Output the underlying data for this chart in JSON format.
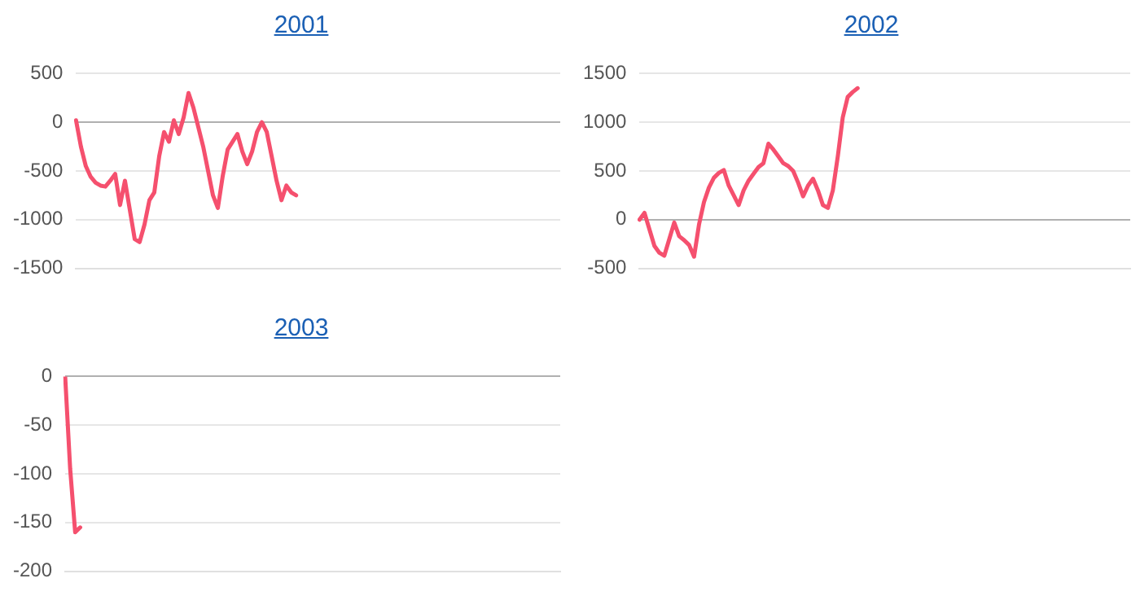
{
  "chart_data": [
    {
      "type": "line",
      "title": "2001",
      "categories": [
        null,
        null,
        null,
        null,
        null,
        null,
        null,
        null,
        null,
        null,
        null,
        null,
        null,
        null,
        null,
        null,
        null,
        null,
        null,
        null,
        null,
        null,
        null,
        null,
        null,
        null,
        null,
        null,
        null,
        null,
        null,
        null,
        null,
        null,
        null,
        null,
        null,
        null,
        null,
        null,
        null,
        null,
        null,
        null,
        null,
        null,
        null,
        null,
        null,
        null,
        null,
        null,
        null,
        null,
        null,
        null,
        null,
        null,
        null,
        null,
        null,
        null,
        null,
        null,
        null,
        null,
        null,
        null,
        null,
        null,
        null,
        null,
        null,
        null,
        null,
        null,
        null,
        null,
        null,
        null,
        null,
        null,
        null,
        null,
        null,
        null,
        null,
        null,
        null,
        null,
        null,
        null,
        null,
        null,
        null,
        null,
        null,
        null,
        null,
        null
      ],
      "series": [
        {
          "color": "#f5506e",
          "values": [
            20,
            -250,
            -450,
            -560,
            -620,
            -650,
            -660,
            -600,
            -530,
            -850,
            -600,
            -900,
            -1200,
            -1230,
            -1050,
            -800,
            -720,
            -350,
            -100,
            -200,
            20,
            -120,
            50,
            300,
            150,
            -50,
            -250,
            -500,
            -750,
            -880,
            -550,
            -280,
            -200,
            -120,
            -300,
            -430,
            -300,
            -100,
            0,
            -100,
            -350,
            -600,
            -800,
            -650,
            -720,
            -750,
            null,
            null,
            null,
            null,
            null,
            null,
            null,
            null,
            null,
            null,
            null,
            null,
            null,
            null,
            null,
            null,
            null,
            null,
            null,
            null,
            null,
            null,
            null,
            null,
            null,
            null,
            null,
            null,
            null,
            null,
            null,
            null,
            null,
            null,
            null,
            null,
            null,
            null,
            null,
            null,
            null,
            null,
            null,
            null,
            null,
            null,
            null,
            null,
            null,
            null,
            null,
            null,
            null,
            null
          ]
        }
      ],
      "ylim": [
        -1500,
        500
      ],
      "yticks": [
        -1500,
        -1000,
        -500,
        0,
        500
      ],
      "grid": "y",
      "tick_labels": "y",
      "legend": false,
      "marker": "none",
      "line_style": "solid"
    },
    {
      "type": "line",
      "title": "2002",
      "categories": [
        null,
        null,
        null,
        null,
        null,
        null,
        null,
        null,
        null,
        null,
        null,
        null,
        null,
        null,
        null,
        null,
        null,
        null,
        null,
        null,
        null,
        null,
        null,
        null,
        null,
        null,
        null,
        null,
        null,
        null,
        null,
        null,
        null,
        null,
        null,
        null,
        null,
        null,
        null,
        null,
        null,
        null,
        null,
        null,
        null,
        null,
        null,
        null,
        null,
        null,
        null,
        null,
        null,
        null,
        null,
        null,
        null,
        null,
        null,
        null,
        null,
        null,
        null,
        null,
        null,
        null,
        null,
        null,
        null,
        null,
        null,
        null,
        null,
        null,
        null,
        null,
        null,
        null,
        null,
        null,
        null,
        null,
        null,
        null,
        null,
        null,
        null,
        null,
        null,
        null,
        null,
        null,
        null,
        null,
        null,
        null,
        null,
        null,
        null,
        null
      ],
      "series": [
        {
          "color": "#f5506e",
          "values": [
            0,
            70,
            -100,
            -270,
            -340,
            -370,
            -200,
            -30,
            -170,
            -210,
            -260,
            -380,
            -50,
            180,
            330,
            430,
            480,
            510,
            350,
            250,
            150,
            300,
            400,
            470,
            540,
            580,
            780,
            720,
            650,
            580,
            550,
            500,
            380,
            240,
            350,
            420,
            300,
            150,
            120,
            300,
            650,
            1050,
            1260,
            1310,
            1350,
            null,
            null,
            null,
            null,
            null,
            null,
            null,
            null,
            null,
            null,
            null,
            null,
            null,
            null,
            null,
            null,
            null,
            null,
            null,
            null,
            null,
            null,
            null,
            null,
            null,
            null,
            null,
            null,
            null,
            null,
            null,
            null,
            null,
            null,
            null,
            null,
            null,
            null,
            null,
            null,
            null,
            null,
            null,
            null,
            null,
            null,
            null,
            null,
            null,
            null,
            null,
            null,
            null,
            null,
            null
          ]
        }
      ],
      "ylim": [
        -500,
        1500
      ],
      "yticks": [
        -500,
        0,
        500,
        1000,
        1500
      ],
      "grid": "y",
      "tick_labels": "y",
      "legend": false,
      "marker": "none",
      "line_style": "solid"
    },
    {
      "type": "line",
      "title": "2003",
      "categories": [
        null,
        null,
        null,
        null,
        null,
        null,
        null,
        null,
        null,
        null,
        null,
        null,
        null,
        null,
        null,
        null,
        null,
        null,
        null,
        null,
        null,
        null,
        null,
        null,
        null,
        null,
        null,
        null,
        null,
        null,
        null,
        null,
        null,
        null,
        null,
        null,
        null,
        null,
        null,
        null,
        null,
        null,
        null,
        null,
        null,
        null,
        null,
        null,
        null,
        null,
        null,
        null,
        null,
        null,
        null,
        null,
        null,
        null,
        null,
        null,
        null,
        null,
        null,
        null,
        null,
        null,
        null,
        null,
        null,
        null,
        null,
        null,
        null,
        null,
        null,
        null,
        null,
        null,
        null,
        null,
        null,
        null,
        null,
        null,
        null,
        null,
        null,
        null,
        null,
        null,
        null,
        null,
        null,
        null,
        null,
        null,
        null,
        null,
        null,
        null
      ],
      "series": [
        {
          "color": "#f5506e",
          "values": [
            0,
            -95,
            -160,
            -155,
            null,
            null,
            null,
            null,
            null,
            null,
            null,
            null,
            null,
            null,
            null,
            null,
            null,
            null,
            null,
            null,
            null,
            null,
            null,
            null,
            null,
            null,
            null,
            null,
            null,
            null,
            null,
            null,
            null,
            null,
            null,
            null,
            null,
            null,
            null,
            null,
            null,
            null,
            null,
            null,
            null,
            null,
            null,
            null,
            null,
            null,
            null,
            null,
            null,
            null,
            null,
            null,
            null,
            null,
            null,
            null,
            null,
            null,
            null,
            null,
            null,
            null,
            null,
            null,
            null,
            null,
            null,
            null,
            null,
            null,
            null,
            null,
            null,
            null,
            null,
            null,
            null,
            null,
            null,
            null,
            null,
            null,
            null,
            null,
            null,
            null,
            null,
            null,
            null,
            null,
            null,
            null,
            null,
            null,
            null,
            null
          ]
        }
      ],
      "ylim": [
        -200,
        0
      ],
      "yticks": [
        -200,
        -150,
        -100,
        -50,
        0
      ],
      "grid": "y",
      "tick_labels": "y",
      "legend": false,
      "marker": "none",
      "line_style": "solid"
    }
  ]
}
